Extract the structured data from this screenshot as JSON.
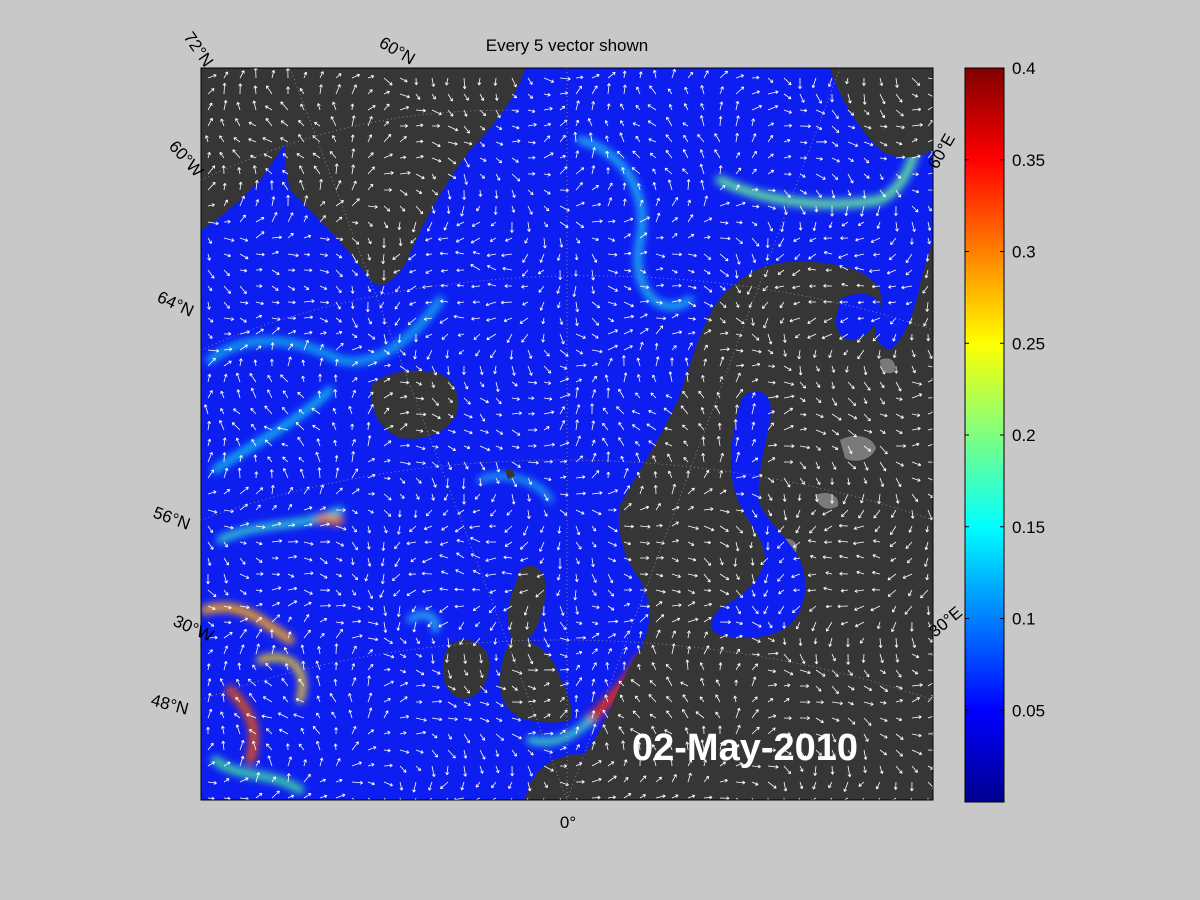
{
  "figure": {
    "title": "Every 5 vector shown",
    "date_stamp": "02-May-2010"
  },
  "map": {
    "grid_labels": {
      "lat_72": "72°N",
      "lat_60": "60°N",
      "lat_64": "64°N",
      "lat_56": "56°N",
      "lat_48": "48°N",
      "lon_60w": "60°W",
      "lon_30w": "30°W",
      "lon_0": "0°",
      "lon_60e": "60°E",
      "lon_30e": "30°E"
    },
    "colors": {
      "land": "#363636",
      "ice": "#808080",
      "ocean_low": "#0d1ef0",
      "arrows": "#ffffff"
    }
  },
  "colorbar": {
    "colormap": "jet",
    "min": 0,
    "max": 0.4,
    "ticks": [
      "0.4",
      "0.35",
      "0.3",
      "0.25",
      "0.2",
      "0.15",
      "0.1",
      "0.05"
    ],
    "tick_values": [
      0.4,
      0.35,
      0.3,
      0.25,
      0.2,
      0.15,
      0.1,
      0.05
    ]
  }
}
